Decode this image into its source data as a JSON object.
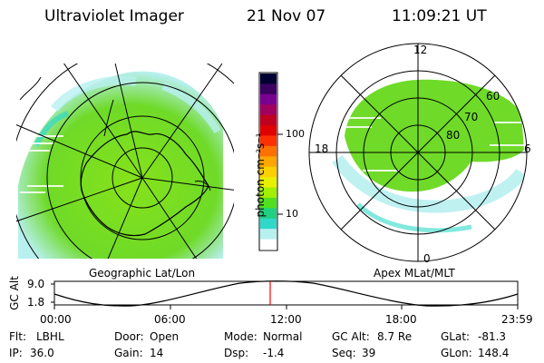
{
  "header": {
    "instrument": "Ultraviolet Imager",
    "date": "21 Nov 07",
    "time": "11:09:21 UT"
  },
  "left_panel": {
    "label": "Geographic Lat/Lon"
  },
  "right_panel": {
    "label": "Apex MLat/MLT",
    "mlt_labels": {
      "top": "12",
      "left": "18",
      "right": "6",
      "bottom": "0"
    },
    "mlat_labels": [
      "60",
      "70",
      "80"
    ]
  },
  "colorbar": {
    "unit_label": "photon cm⁻²s⁻¹",
    "tick_labels": [
      "100",
      "10"
    ],
    "colors": [
      "#000033",
      "#3a0060",
      "#7a0090",
      "#a00060",
      "#c00020",
      "#e00000",
      "#ff3000",
      "#ff7000",
      "#ffa500",
      "#ffd000",
      "#e8f000",
      "#a0f000",
      "#50e020",
      "#20d080",
      "#30d8c8",
      "#b8f0f0",
      "#ffffff"
    ]
  },
  "altitude_plot": {
    "ylabel": "GC Alt",
    "y_ticks": [
      "9.0",
      "1.8"
    ],
    "x_ticks": [
      "00:00",
      "06:00",
      "12:00",
      "18:00",
      "23:59"
    ],
    "current_marker_color": "#ff0000"
  },
  "info": {
    "flt_label": "Flt:",
    "flt_value": "LBHL",
    "ip_label": "IP:",
    "ip_value": "36.0",
    "door_label": "Door:",
    "door_value": "Open",
    "gain_label": "Gain:",
    "gain_value": "14",
    "mode_label": "Mode:",
    "mode_value": "Normal",
    "dsp_label": "Dsp:",
    "dsp_value": "-1.4",
    "gcalt_label": "GC Alt:",
    "gcalt_value": "8.7 Re",
    "seq_label": "Seq:",
    "seq_value": "39",
    "glat_label": "GLat:",
    "glat_value": "-81.3",
    "glon_label": "GLon:",
    "glon_value": "148.4"
  }
}
